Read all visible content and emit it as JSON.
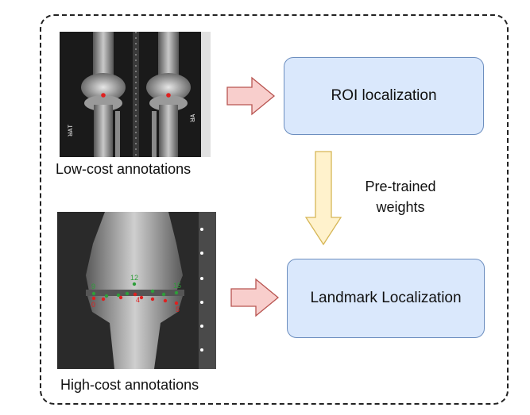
{
  "captions": {
    "low_cost": "Low-cost annotations",
    "high_cost": "High-cost annotations"
  },
  "boxes": {
    "roi": "ROI localization",
    "landmark": "Landmark Localization"
  },
  "edge_label": {
    "line1": "Pre-trained",
    "line2": "weights"
  },
  "xray_top": {
    "side_mark_left": "ᴚᴀᴛ",
    "side_mark_right": "ᴚᴀ"
  },
  "xray_bottom": {
    "landmark_labels": [
      "9",
      "12",
      "15",
      "0",
      "4",
      "5"
    ]
  },
  "colors": {
    "box_fill": "#dae8fc",
    "box_stroke": "#6c8ebf",
    "arrow_pink_fill": "#f8cecc",
    "arrow_pink_stroke": "#b85450",
    "arrow_yellow_fill": "#fff2cc",
    "arrow_yellow_stroke": "#d6b656",
    "landmark_green": "#2e9e3a",
    "landmark_red": "#e02020"
  }
}
